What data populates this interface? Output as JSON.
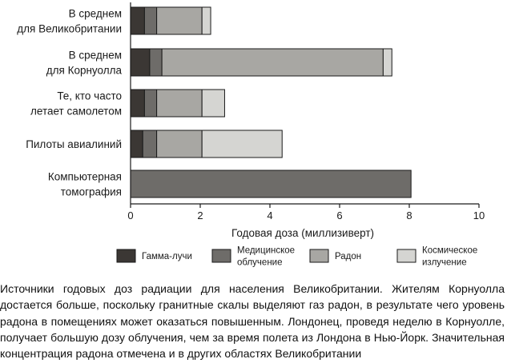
{
  "chart_data": {
    "type": "bar",
    "orientation": "horizontal",
    "stacked": true,
    "categories": [
      [
        "В среднем",
        "для Великобритании"
      ],
      [
        "В среднем",
        "для Корнуолла"
      ],
      [
        "Те, кто часто",
        "летает самолетом"
      ],
      [
        "Пилоты авиалиний"
      ],
      [
        "Компьютерная",
        "томография"
      ]
    ],
    "series": [
      {
        "name": "Гамма-лучи",
        "color": "#3b3734",
        "values": [
          0.4,
          0.55,
          0.4,
          0.35,
          0
        ]
      },
      {
        "name": "Медицинское облучение",
        "color": "#6e6c69",
        "values": [
          0.35,
          0.35,
          0.35,
          0.4,
          8.05
        ]
      },
      {
        "name": "Радон",
        "color": "#a8a7a3",
        "values": [
          1.3,
          6.35,
          1.3,
          1.3,
          0
        ]
      },
      {
        "name": "Космическое излучение",
        "color": "#d5d5d2",
        "values": [
          0.25,
          0.25,
          0.65,
          2.3,
          0
        ]
      }
    ],
    "legend": [
      {
        "lines": [
          "Гамма-лучи"
        ],
        "color": "#3b3734"
      },
      {
        "lines": [
          "Медицинское",
          "облучение"
        ],
        "color": "#6e6c69"
      },
      {
        "lines": [
          "Радон"
        ],
        "color": "#a8a7a3"
      },
      {
        "lines": [
          "Космическое",
          "излучение"
        ],
        "color": "#d5d5d2"
      }
    ],
    "xlabel": "Годовая доза (миллизиверт)",
    "xlim": [
      0,
      10
    ],
    "xticks": [
      "0",
      "2",
      "4",
      "6",
      "8",
      "10"
    ],
    "grid": false,
    "legend_position": "bottom"
  },
  "caption": "Источники годовых доз радиации для населения Великобритании. Жителям Корнуолла достается больше, поскольку гранитные скалы выделяют газ радон, в результате чего уровень радона в помещениях может оказаться повышенным. Лондонец, проведя неделю в Корнуолле, получает большую дозу облучения, чем за время полета из Лондона в Нью-Йорк. Значительная концентрация радона отмечена и в других областях Великобритании"
}
